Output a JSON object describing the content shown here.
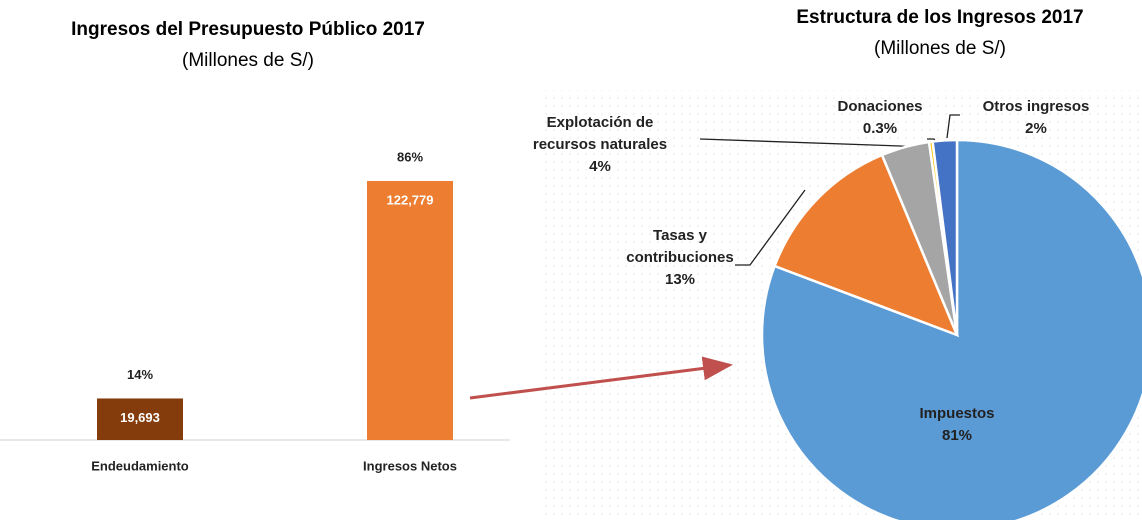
{
  "chart_data": [
    {
      "type": "bar",
      "title": "Ingresos del Presupuesto Público 2017",
      "subtitle": "(Millones de S/)",
      "categories": [
        "Endeudamiento",
        "Ingresos Netos"
      ],
      "values": [
        19693,
        122779
      ],
      "value_labels": [
        "19,693",
        "122,779"
      ],
      "share_labels": [
        "14%",
        "86%"
      ],
      "colors": [
        "#843c0c",
        "#ed7d31"
      ]
    },
    {
      "type": "pie",
      "title": "Estructura de los Ingresos 2017",
      "subtitle": "(Millones de S/)",
      "labels": [
        "Impuestos",
        "Tasas y contribuciones",
        "Explotación de recursos naturales",
        "Donaciones",
        "Otros ingresos"
      ],
      "values": [
        81,
        13,
        4,
        0.3,
        2
      ],
      "value_labels": [
        "81%",
        "13%",
        "4%",
        "0.3%",
        "2%"
      ],
      "colors": [
        "#5b9bd5",
        "#ed7d31",
        "#a5a5a5",
        "#ffc000",
        "#4472c4"
      ]
    }
  ]
}
